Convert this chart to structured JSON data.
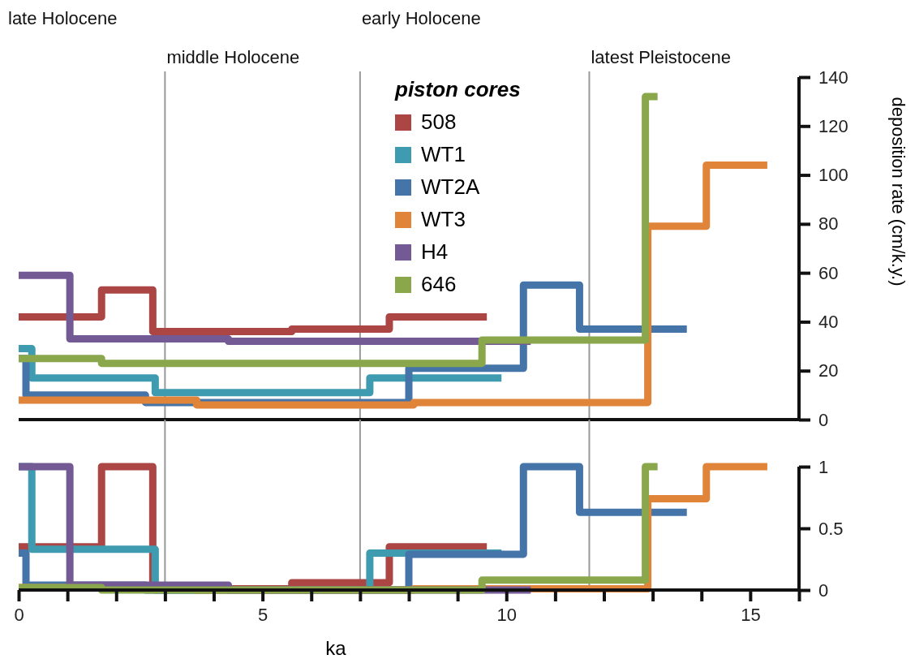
{
  "chart_data": [
    {
      "type": "step",
      "ylabel": "deposition rate (cm/k.y.)",
      "legend_title": "piston cores",
      "legend": "top",
      "xlim": [
        0,
        16
      ],
      "ylim": [
        0,
        140
      ],
      "yticks": [
        0,
        20,
        40,
        60,
        80,
        100,
        120,
        140
      ],
      "tick_labels": "y",
      "grid": false,
      "annotations": [
        "late Holocene",
        "middle Holocene",
        "early Holocene",
        "latest Pleistocene"
      ],
      "ref_lines": [
        {
          "axis": "x",
          "value": 3,
          "color": "#999999"
        },
        {
          "axis": "x",
          "value": 7,
          "color": "#999999"
        },
        {
          "axis": "x",
          "value": 11.7,
          "color": "#999999"
        }
      ],
      "series": [
        {
          "name": "508",
          "color": "#ab4644",
          "x": [
            0,
            1.7,
            2.75,
            5.6,
            7.6,
            9.6
          ],
          "values": [
            42,
            53,
            36,
            37,
            42,
            42
          ]
        },
        {
          "name": "WT1",
          "color": "#3f9bb0",
          "x": [
            0,
            0.27,
            2.8,
            7.2,
            9.9
          ],
          "values": [
            29,
            17,
            11,
            17,
            17
          ]
        },
        {
          "name": "WT2A",
          "color": "#4574a9",
          "x": [
            0,
            0.15,
            2.6,
            8.0,
            10.35,
            11.5,
            13.7
          ],
          "values": [
            25,
            10,
            7,
            21,
            55,
            37,
            37
          ]
        },
        {
          "name": "WT3",
          "color": "#e0843a",
          "x": [
            0,
            3.65,
            8.1,
            12.9,
            14.1,
            15.35
          ],
          "values": [
            8,
            6,
            7,
            79,
            104,
            104
          ]
        },
        {
          "name": "H4",
          "color": "#745a94",
          "x": [
            0,
            1.05,
            4.3,
            10.5
          ],
          "values": [
            59,
            33,
            32,
            32
          ]
        },
        {
          "name": "646",
          "color": "#8aa84b",
          "x": [
            0,
            1.7,
            9.5,
            12.85,
            13.1
          ],
          "values": [
            25,
            23,
            32.5,
            132,
            132
          ]
        }
      ]
    },
    {
      "type": "step",
      "xlabel": "ka",
      "xlim": [
        0,
        16
      ],
      "xticks": [
        0,
        {
          "value": 1,
          "label": null
        },
        {
          "value": 2,
          "label": null
        },
        {
          "value": 3,
          "label": null
        },
        {
          "value": 4,
          "label": null
        },
        5,
        {
          "value": 6,
          "label": null
        },
        {
          "value": 7,
          "label": null
        },
        {
          "value": 8,
          "label": null
        },
        {
          "value": 9,
          "label": null
        },
        10,
        {
          "value": 11,
          "label": null
        },
        {
          "value": 12,
          "label": null
        },
        {
          "value": 13,
          "label": null
        },
        {
          "value": 14,
          "label": null
        },
        15,
        {
          "value": 16,
          "label": null
        }
      ],
      "ylim": [
        0,
        1
      ],
      "yticks": [
        0,
        0.5,
        1
      ],
      "grid": false,
      "ref_lines": [
        {
          "axis": "x",
          "value": 3,
          "color": "#999999"
        },
        {
          "axis": "x",
          "value": 7,
          "color": "#999999"
        },
        {
          "axis": "x",
          "value": 11.7,
          "color": "#999999"
        }
      ],
      "series": [
        {
          "color": "#ab4644",
          "x": [
            0,
            1.7,
            2.75,
            5.6,
            7.6,
            9.6
          ],
          "values": [
            0.35,
            1,
            0.01,
            0.06,
            0.35,
            0.35
          ]
        },
        {
          "color": "#3f9bb0",
          "x": [
            0,
            0.27,
            2.8,
            7.2,
            9.9
          ],
          "values": [
            1,
            0.33,
            0,
            0.3,
            0.3
          ]
        },
        {
          "color": "#4574a9",
          "x": [
            0,
            0.15,
            2.6,
            8.0,
            10.35,
            11.5,
            13.7
          ],
          "values": [
            0.3,
            0.04,
            0,
            0.29,
            1,
            0.63,
            0.63
          ]
        },
        {
          "color": "#e0843a",
          "x": [
            0,
            3.65,
            8.1,
            12.9,
            14.1,
            15.35
          ],
          "values": [
            0.02,
            0,
            0.01,
            0.74,
            1,
            1
          ]
        },
        {
          "color": "#745a94",
          "x": [
            0,
            1.05,
            4.3,
            10.5
          ],
          "values": [
            1,
            0.04,
            0,
            0
          ]
        },
        {
          "color": "#8aa84b",
          "x": [
            0,
            1.7,
            9.5,
            12.85,
            13.1
          ],
          "values": [
            0.02,
            0,
            0.08,
            1,
            1
          ]
        }
      ]
    }
  ]
}
